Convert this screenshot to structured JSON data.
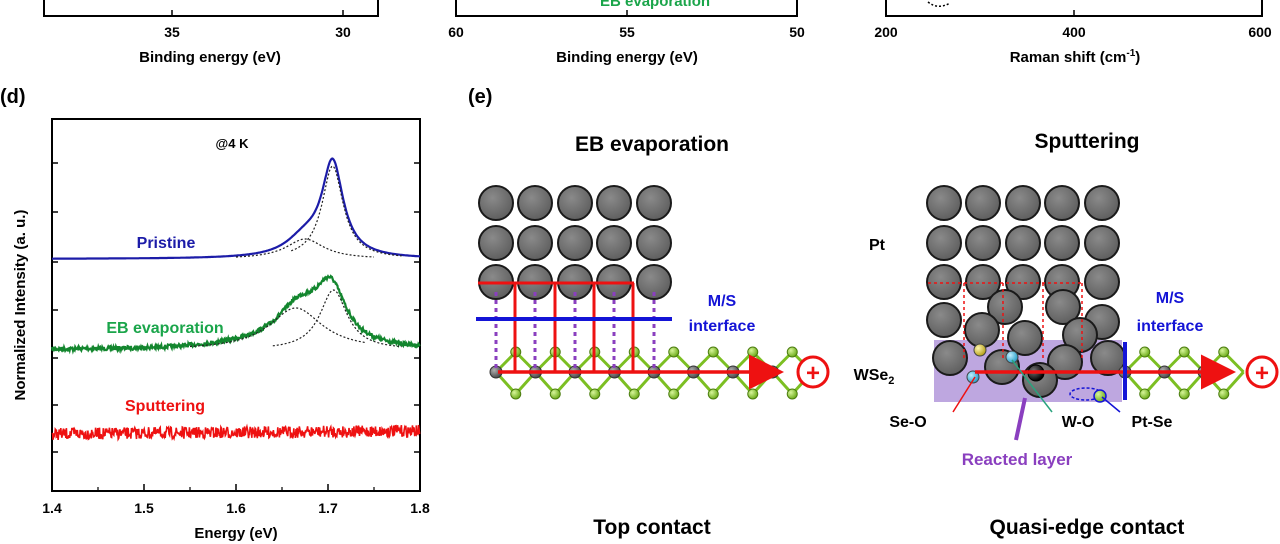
{
  "top_panels": {
    "a": {
      "xlabel": "Binding energy (eV)",
      "ticks": [
        "35",
        "30"
      ]
    },
    "b": {
      "xlabel": "Binding energy (eV)",
      "ticks": [
        "60",
        "55",
        "50"
      ],
      "partial_label": "EB evaporation"
    },
    "c": {
      "xlabel_main": "Raman shift (cm",
      "xlabel_sup": "-1",
      "xlabel_end": ")",
      "ticks": [
        "200",
        "400",
        "600"
      ]
    }
  },
  "panel_d": {
    "panel_label": "(d)",
    "annotation": "@4 K",
    "colors": {
      "pristine": "#1c1ca8",
      "eb": "#13862e",
      "sputter": "#ee1111",
      "eb_label": "#1aa54a"
    }
  },
  "panel_e": {
    "panel_label": "(e)",
    "left": {
      "title": "EB evaporation",
      "interface_line1": "M/S",
      "interface_line2": "interface",
      "caption": "Top contact",
      "plus_symbol": "+"
    },
    "right": {
      "title": "Sputtering",
      "pt_label": "Pt",
      "interface_line1": "M/S",
      "interface_line2": "interface",
      "wse2_main": "WSe",
      "wse2_sub": "2",
      "se_o": "Se-O",
      "w_o": "W-O",
      "pt_se": "Pt-Se",
      "reacted_layer": "Reacted layer",
      "caption": "Quasi-edge contact",
      "plus_symbol": "+"
    }
  },
  "chart_data": {
    "type": "line",
    "title": "@4 K",
    "xlabel": "Energy (eV)",
    "ylabel": "Normalized Intensity (a. u.)",
    "xlim": [
      1.4,
      1.8
    ],
    "x_ticks": [
      "1.4",
      "1.5",
      "1.6",
      "1.7",
      "1.8"
    ],
    "series": [
      {
        "name": "Pristine",
        "peak_energy": 1.705,
        "width": 0.014,
        "shoulder_energy": 1.675,
        "offset": 2.0
      },
      {
        "name": "EB evaporation",
        "peak_energy": 1.703,
        "width": 0.02,
        "shoulder_energy": 1.68,
        "offset": 1.0
      },
      {
        "name": "Sputtering",
        "peak_energy": null,
        "offset": 0.0
      }
    ]
  }
}
